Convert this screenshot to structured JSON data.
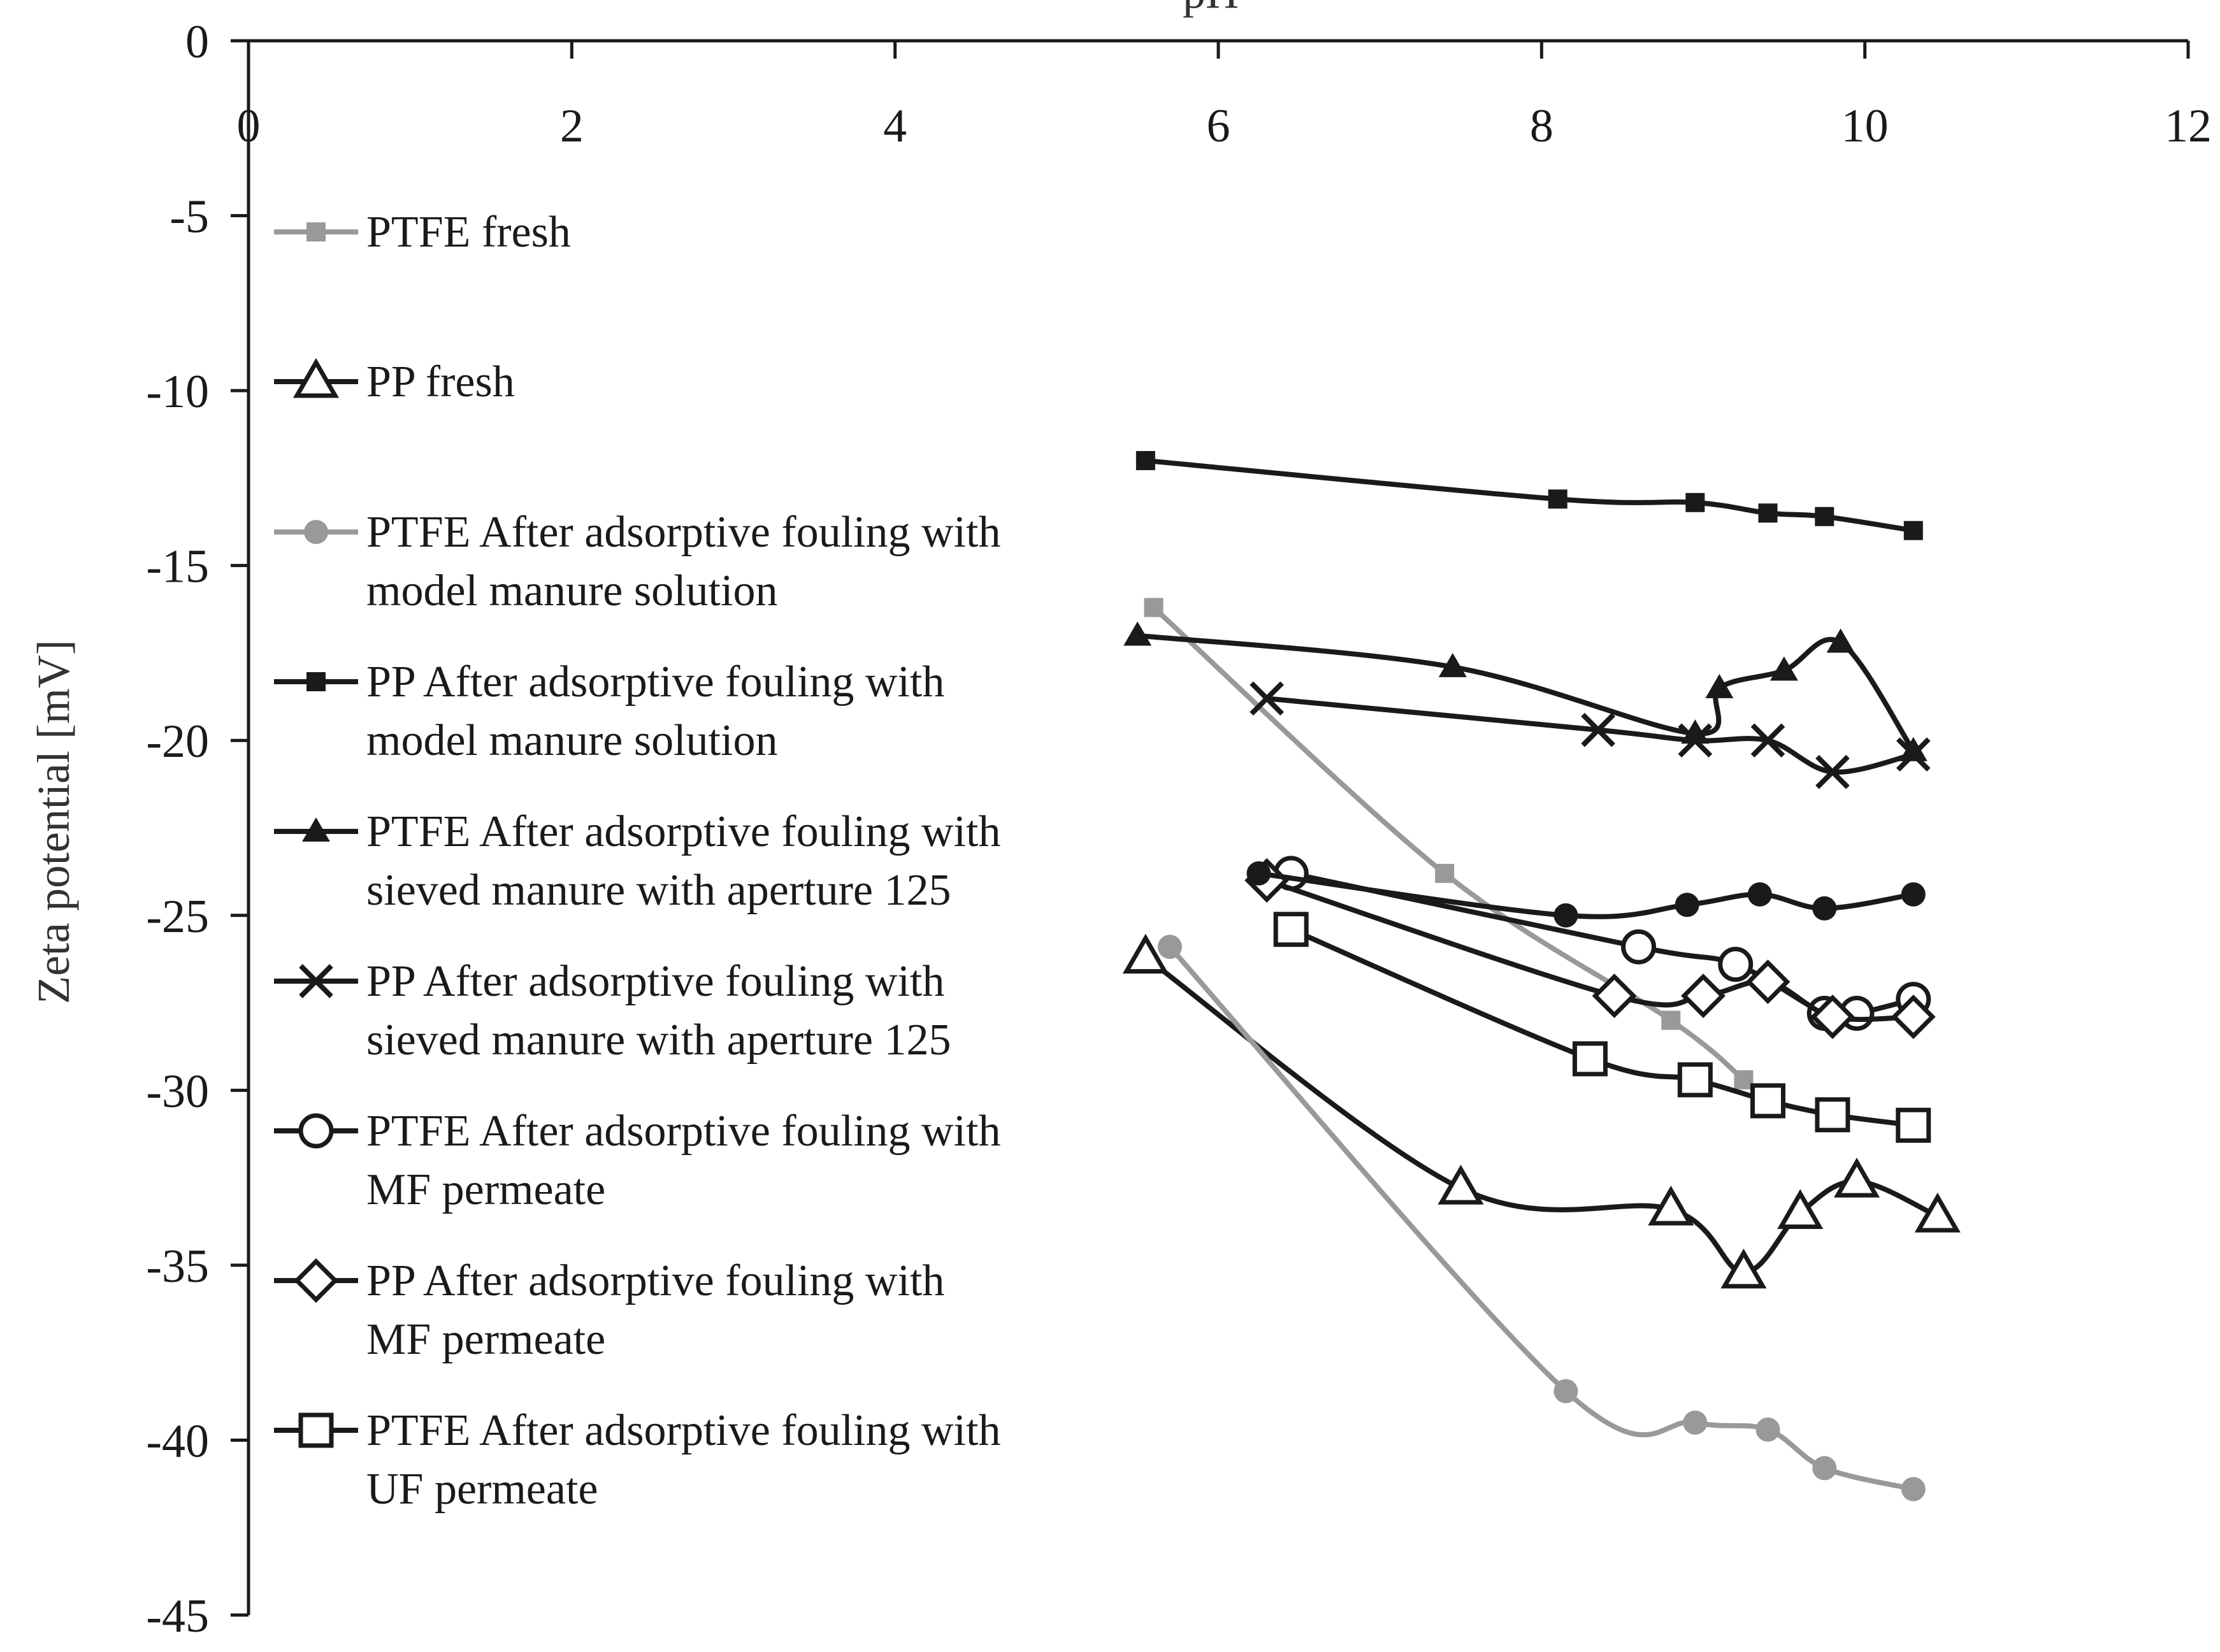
{
  "chart_data": {
    "type": "line",
    "title": "",
    "xlabel": "pH",
    "ylabel": "Zeta potential [mV]",
    "xlim": [
      0,
      12
    ],
    "ylim": [
      -45,
      0
    ],
    "xticks": [
      "0",
      "2",
      "4",
      "6",
      "8",
      "10",
      "12"
    ],
    "yticks": [
      "0",
      "-5",
      "-10",
      "-15",
      "-20",
      "-25",
      "-30",
      "-35",
      "-40",
      "-45"
    ],
    "x_axis_position": "top",
    "grid": false,
    "legend_position": "left-inside",
    "colors": {
      "black": "#1a1a1a",
      "gray": "#999999"
    },
    "series": [
      {
        "name": "PTFE fresh",
        "legend_lines": [
          "PTFE fresh"
        ],
        "marker": "square-small",
        "color": "gray",
        "x": [
          5.6,
          7.4,
          8.8,
          9.25
        ],
        "y": [
          -16.2,
          -23.8,
          -28.0,
          -29.7
        ]
      },
      {
        "name": "PP fresh",
        "legend_lines": [
          "PP fresh"
        ],
        "marker": "triangle-open",
        "color": "black",
        "x": [
          5.55,
          7.5,
          8.8,
          9.25,
          9.6,
          9.95,
          10.45
        ],
        "y": [
          -26.2,
          -32.8,
          -33.4,
          -35.2,
          -33.5,
          -32.6,
          -33.6
        ]
      },
      {
        "name": "PTFE After adsorptive fouling with model manure solution",
        "legend_lines": [
          "PTFE After adsorptive fouling with",
          "model manure solution"
        ],
        "marker": "circle-small",
        "color": "gray",
        "x": [
          5.7,
          8.15,
          8.95,
          9.4,
          9.75,
          10.3
        ],
        "y": [
          -25.9,
          -38.6,
          -39.5,
          -39.7,
          -40.8,
          -41.4
        ]
      },
      {
        "name": "PP After adsorptive fouling with model manure solution",
        "legend_lines": [
          "PP After adsorptive fouling with",
          "model manure solution"
        ],
        "marker": "square-small",
        "color": "black",
        "x": [
          5.55,
          8.1,
          8.95,
          9.4,
          9.75,
          10.3
        ],
        "y": [
          -12.0,
          -13.1,
          -13.2,
          -13.5,
          -13.6,
          -14.0
        ]
      },
      {
        "name": "PTFE After adsorptive fouling with sieved manure with aperture 125",
        "legend_lines": [
          "PTFE After adsorptive fouling with",
          "sieved manure with aperture 125"
        ],
        "marker": "triangle-small",
        "color": "black",
        "x": [
          5.5,
          7.45,
          8.95,
          9.1,
          9.5,
          9.85,
          10.3
        ],
        "y": [
          -17.0,
          -17.9,
          -19.8,
          -18.5,
          -18.0,
          -17.2,
          -20.3
        ]
      },
      {
        "name": "PP After adsorptive fouling with sieved manure with aperture 125",
        "legend_lines": [
          "PP After adsorptive fouling with",
          "sieved manure with aperture 125"
        ],
        "marker": "x",
        "color": "black",
        "x": [
          6.3,
          8.35,
          8.95,
          9.4,
          9.8,
          10.3
        ],
        "y": [
          -18.8,
          -19.7,
          -20.0,
          -20.0,
          -20.9,
          -20.4
        ]
      },
      {
        "name": "PTFE After adsorptive fouling with MF permeate",
        "legend_lines": [
          "PTFE After adsorptive fouling with",
          "MF permeate"
        ],
        "marker": "circle-open",
        "color": "black",
        "x": [
          6.45,
          8.6,
          9.2,
          9.75,
          9.95,
          10.3
        ],
        "y": [
          -23.8,
          -25.9,
          -26.4,
          -27.8,
          -27.8,
          -27.4
        ]
      },
      {
        "name": "PP After adsorptive fouling with MF permeate",
        "legend_lines": [
          "PP After adsorptive fouling with",
          "MF permeate"
        ],
        "marker": "diamond-open",
        "color": "black",
        "x": [
          6.3,
          8.45,
          9.0,
          9.4,
          9.8,
          10.3
        ],
        "y": [
          -24.0,
          -27.3,
          -27.3,
          -26.9,
          -27.9,
          -27.9
        ]
      },
      {
        "name": "PTFE After adsorptive fouling with UF permeate",
        "legend_lines": [
          "PTFE After adsorptive fouling with",
          "UF permeate"
        ],
        "marker": "square-open",
        "color": "black",
        "x": [
          6.45,
          8.3,
          8.95,
          9.4,
          9.8,
          10.3
        ],
        "y": [
          -25.4,
          -29.1,
          -29.7,
          -30.3,
          -30.7,
          -31.0
        ]
      },
      {
        "name": "Additional series (filled circle, unlabeled)",
        "legend_lines": [],
        "marker": "circle-small",
        "color": "black",
        "x": [
          6.25,
          8.15,
          8.9,
          9.35,
          9.75,
          10.3
        ],
        "y": [
          -23.8,
          -25.0,
          -24.7,
          -24.4,
          -24.8,
          -24.4
        ]
      }
    ]
  }
}
